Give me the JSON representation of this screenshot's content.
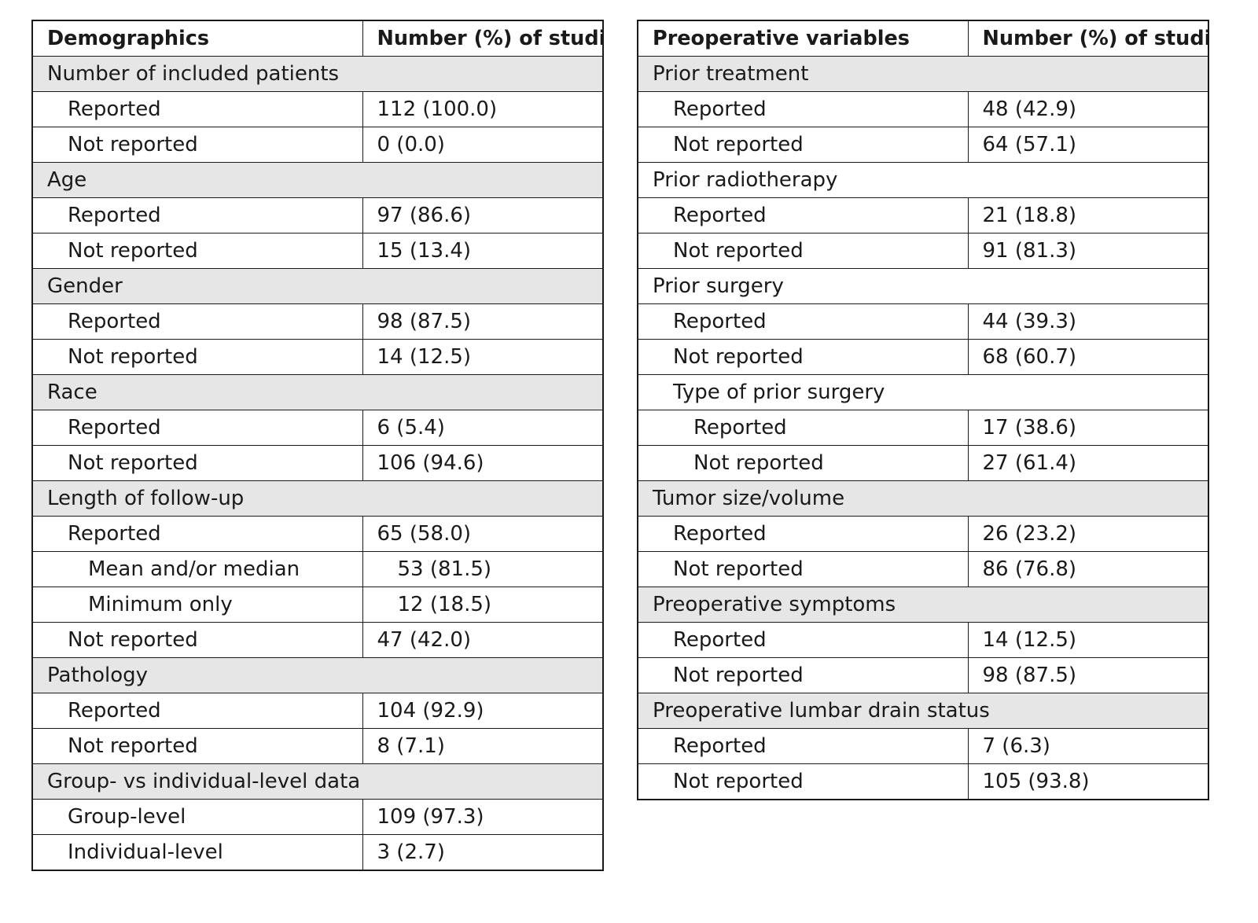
{
  "left_table": {
    "header": [
      "Demographics",
      "Number (%) of studies"
    ],
    "rows": [
      {
        "type": "section",
        "label": "Number of included patients"
      },
      {
        "type": "row",
        "level": 1,
        "label": "Reported",
        "value": "112 (100.0)"
      },
      {
        "type": "row",
        "level": 1,
        "label": "Not reported",
        "value": "0 (0.0)"
      },
      {
        "type": "section",
        "label": "Age"
      },
      {
        "type": "row",
        "level": 1,
        "label": "Reported",
        "value": "97 (86.6)"
      },
      {
        "type": "row",
        "level": 1,
        "label": "Not reported",
        "value": "15 (13.4)"
      },
      {
        "type": "section",
        "label": "Gender"
      },
      {
        "type": "row",
        "level": 1,
        "label": "Reported",
        "value": "98 (87.5)"
      },
      {
        "type": "row",
        "level": 1,
        "label": "Not reported",
        "value": "14 (12.5)"
      },
      {
        "type": "section",
        "label": "Race"
      },
      {
        "type": "row",
        "level": 1,
        "label": "Reported",
        "value": "6 (5.4)"
      },
      {
        "type": "row",
        "level": 1,
        "label": "Not reported",
        "value": "106 (94.6)"
      },
      {
        "type": "section",
        "label": "Length of follow-up"
      },
      {
        "type": "row",
        "level": 1,
        "label": "Reported",
        "value": "65 (58.0)"
      },
      {
        "type": "row",
        "level": 2,
        "label": "Mean and/or median",
        "value": "53 (81.5)"
      },
      {
        "type": "row",
        "level": 2,
        "label": "Minimum only",
        "value": "12 (18.5)"
      },
      {
        "type": "row",
        "level": 1,
        "label": "Not reported",
        "value": "47 (42.0)"
      },
      {
        "type": "section",
        "label": "Pathology"
      },
      {
        "type": "row",
        "level": 1,
        "label": "Reported",
        "value": "104 (92.9)"
      },
      {
        "type": "row",
        "level": 1,
        "label": "Not reported",
        "value": "8 (7.1)"
      },
      {
        "type": "section",
        "label": "Group- vs individual-level data"
      },
      {
        "type": "row",
        "level": 1,
        "label": "Group-level",
        "value": "109 (97.3)"
      },
      {
        "type": "row",
        "level": 1,
        "label": "Individual-level",
        "value": "3 (2.7)"
      }
    ]
  },
  "right_table": {
    "header": [
      "Preoperative variables",
      "Number (%) of studies"
    ],
    "rows": [
      {
        "type": "section",
        "label": "Prior treatment",
        "shaded": true
      },
      {
        "type": "row",
        "level": 1,
        "label": "Reported",
        "value": "48 (42.9)"
      },
      {
        "type": "row",
        "level": 1,
        "label": "Not reported",
        "value": "64 (57.1)"
      },
      {
        "type": "section",
        "label": "Prior radiotherapy",
        "shaded": false
      },
      {
        "type": "row",
        "level": 1,
        "label": "Reported",
        "value": "21 (18.8)"
      },
      {
        "type": "row",
        "level": 1,
        "label": "Not reported",
        "value": "91 (81.3)"
      },
      {
        "type": "section",
        "label": "Prior surgery",
        "shaded": false
      },
      {
        "type": "row",
        "level": 1,
        "label": "Reported",
        "value": "44 (39.3)"
      },
      {
        "type": "row",
        "level": 1,
        "label": "Not reported",
        "value": "68 (60.7)"
      },
      {
        "type": "section",
        "level": 1,
        "label": "Type of prior surgery",
        "shaded": false
      },
      {
        "type": "row",
        "level": 2,
        "label": "Reported",
        "value": "17 (38.6)"
      },
      {
        "type": "row",
        "level": 2,
        "label": "Not reported",
        "value": "27 (61.4)"
      },
      {
        "type": "section",
        "label": "Tumor size/volume",
        "shaded": true
      },
      {
        "type": "row",
        "level": 1,
        "label": "Reported",
        "value": "26 (23.2)"
      },
      {
        "type": "row",
        "level": 1,
        "label": "Not reported",
        "value": "86 (76.8)"
      },
      {
        "type": "section",
        "label": "Preoperative symptoms",
        "shaded": true
      },
      {
        "type": "row",
        "level": 1,
        "label": "Reported",
        "value": "14 (12.5)"
      },
      {
        "type": "row",
        "level": 1,
        "label": "Not reported",
        "value": "98 (87.5)"
      },
      {
        "type": "section",
        "label": "Preoperative lumbar drain status",
        "shaded": true
      },
      {
        "type": "row",
        "level": 1,
        "label": "Reported",
        "value": "7 (6.3)"
      },
      {
        "type": "row",
        "level": 1,
        "label": "Not reported",
        "value": "105 (93.8)"
      }
    ]
  }
}
